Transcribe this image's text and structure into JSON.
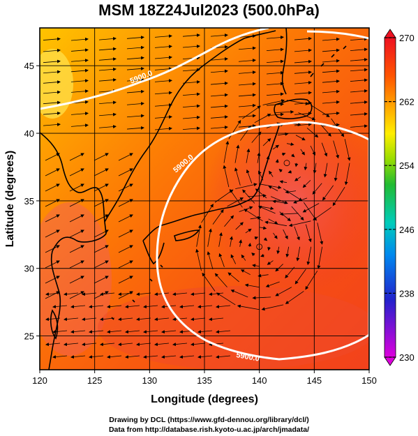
{
  "title": "MSM 18Z24Jul2023 (500.0hPa)",
  "xlabel": "Longitude (degrees)",
  "ylabel": "Latitude  (degrees)",
  "credits": {
    "line1": "Drawing by DCL (https://www.gfd-dennou.org/library/dcl/)",
    "line2": "Data from http://database.rish.kyoto-u.ac.jp/arch/jmadata/"
  },
  "map_data": {
    "type": "map",
    "xlim": [
      120,
      150
    ],
    "ylim": [
      22.5,
      47.8
    ],
    "x_ticks": [
      120,
      125,
      130,
      135,
      140,
      145,
      150
    ],
    "y_ticks": [
      25,
      30,
      35,
      40,
      45
    ],
    "field": "temperature-like shaded field (K)",
    "contour_label": "5900.0",
    "colorbar": {
      "min": 230,
      "max": 270,
      "tick_labels": [
        "270",
        "262",
        "254",
        "246",
        "238",
        "230"
      ],
      "tick_values": [
        270,
        262,
        254,
        246,
        238,
        230
      ],
      "colors": [
        "#dd00dd",
        "#2222cc",
        "#0088ee",
        "#00ccbb",
        "#22bb33",
        "#99dd00",
        "#ffee00",
        "#ffaa00",
        "#ff5500",
        "#ee1122"
      ]
    },
    "vortex_centers": [
      {
        "lon": 142.5,
        "lat": 37.8
      },
      {
        "lon": 140.0,
        "lat": 31.6
      }
    ]
  }
}
